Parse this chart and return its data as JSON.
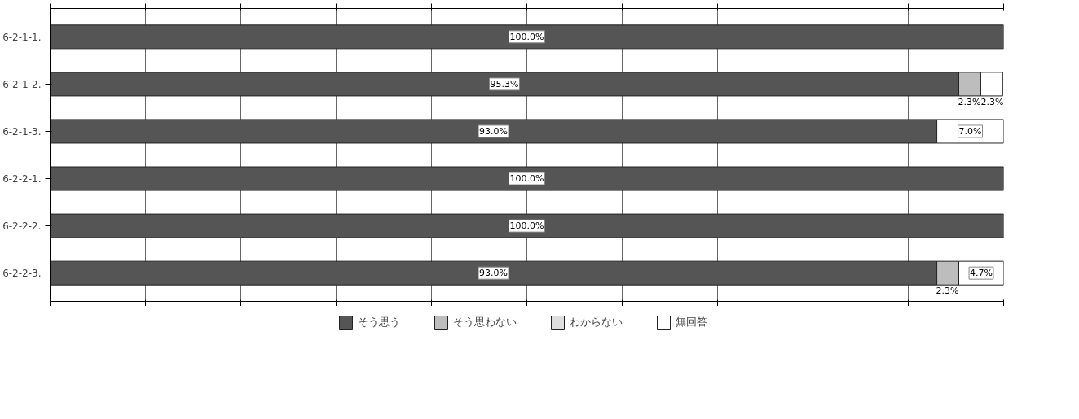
{
  "chart_data": {
    "type": "bar",
    "orientation": "horizontal",
    "stacked": true,
    "categories": [
      "6-2-1-1.",
      "6-2-1-2.",
      "6-2-1-3.",
      "6-2-2-1.",
      "6-2-2-2.",
      "6-2-2-3."
    ],
    "series": [
      {
        "name": "そう思う",
        "color": "#555555",
        "values": [
          100.0,
          95.3,
          93.0,
          100.0,
          100.0,
          93.0
        ],
        "value_labels": [
          "100.0%",
          "95.3%",
          "93.0%",
          "100.0%",
          "100.0%",
          "93.0%"
        ]
      },
      {
        "name": "そう思わない",
        "color": "#bdbdbd",
        "values": [
          0,
          2.3,
          0,
          0,
          0,
          2.3
        ],
        "value_labels": [
          null,
          "2.3%",
          null,
          null,
          null,
          "2.3%"
        ]
      },
      {
        "name": "わからない",
        "color": "#dedede",
        "values": [
          0,
          0,
          0,
          0,
          0,
          0
        ],
        "value_labels": [
          null,
          null,
          null,
          null,
          null,
          null
        ]
      },
      {
        "name": "無回答",
        "color": "#ffffff",
        "values": [
          0,
          2.3,
          7.0,
          0,
          0,
          4.7
        ],
        "value_labels": [
          null,
          "2.3%",
          "7.0%",
          null,
          null,
          "4.7%"
        ]
      }
    ],
    "xlim": [
      0,
      100
    ],
    "xticks": [
      {
        "value": 0,
        "label": null
      },
      {
        "value": 10,
        "label": null
      },
      {
        "value": 20,
        "label": null
      },
      {
        "value": 30,
        "label": null
      },
      {
        "value": 40,
        "label": null
      },
      {
        "value": 50,
        "label": null
      },
      {
        "value": 60,
        "label": null
      },
      {
        "value": 70,
        "label": null
      },
      {
        "value": 80,
        "label": null
      },
      {
        "value": 90,
        "label": null
      },
      {
        "value": 100,
        "label": null
      }
    ],
    "tick_labels": "y",
    "grid": "x",
    "legend": "bottom"
  }
}
